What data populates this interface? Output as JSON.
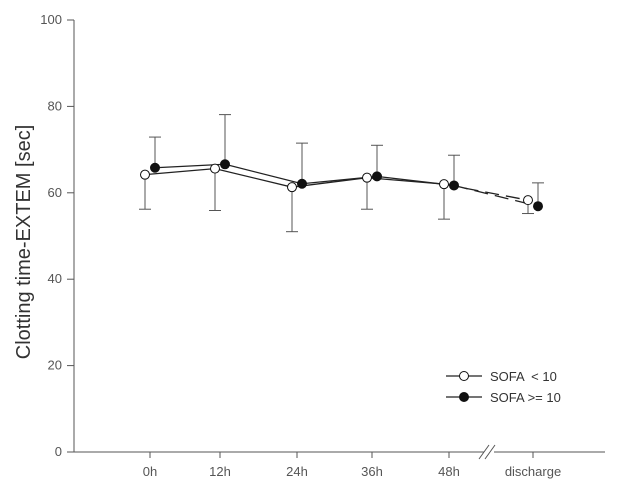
{
  "chart_data": {
    "type": "line",
    "title": "",
    "xlabel": "",
    "ylabel": "Clotting time-EXTEM [sec]",
    "ylim": [
      0,
      100
    ],
    "yticks": [
      0,
      20,
      40,
      60,
      80,
      100
    ],
    "categories": [
      "0h",
      "12h",
      "24h",
      "36h",
      "48h",
      "discharge"
    ],
    "x_axis_break_between": [
      "48h",
      "discharge"
    ],
    "grid": false,
    "legend_position": "bottom-right",
    "series": [
      {
        "name": "SOFA  < 10",
        "marker": "open-circle",
        "values": [
          64.2,
          65.6,
          61.3,
          63.5,
          62.0,
          58.3
        ],
        "error_lower": [
          56.2,
          55.9,
          51.0,
          56.2,
          53.9,
          55.2
        ]
      },
      {
        "name": "SOFA >= 10",
        "marker": "filled-circle",
        "values": [
          65.8,
          66.6,
          62.1,
          63.8,
          61.7,
          56.9
        ],
        "error_upper": [
          72.9,
          78.1,
          71.5,
          71.0,
          68.7,
          62.3
        ]
      }
    ]
  }
}
